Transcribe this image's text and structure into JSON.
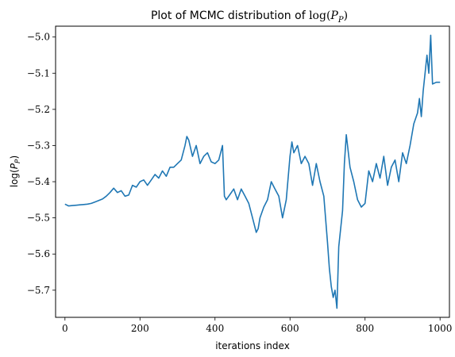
{
  "chart_data": {
    "type": "line",
    "title": {
      "prefix": "Plot of MCMC distribution of ",
      "math_func": "log(",
      "math_var": "P",
      "math_sub": "P",
      "math_close": ")"
    },
    "xlabel": "iterations index",
    "ylabel": {
      "math_func": "log(",
      "math_var": "P",
      "math_sub": "P",
      "math_close": ")"
    },
    "xlim": [
      -25,
      1025
    ],
    "ylim": [
      -5.775,
      -4.97
    ],
    "xticks": [
      0,
      200,
      400,
      600,
      800,
      1000
    ],
    "xtick_labels": [
      "0",
      "200",
      "400",
      "600",
      "800",
      "1000"
    ],
    "yticks": [
      -5.7,
      -5.6,
      -5.5,
      -5.4,
      -5.3,
      -5.2,
      -5.1,
      -5.0
    ],
    "ytick_labels": [
      "−5.7",
      "−5.6",
      "−5.5",
      "−5.4",
      "−5.3",
      "−5.2",
      "−5.1",
      "−5.0"
    ],
    "grid": false,
    "series": [
      {
        "color": "#1f77b4",
        "x": [
          0,
          10,
          20,
          30,
          40,
          50,
          60,
          70,
          80,
          90,
          100,
          110,
          120,
          130,
          140,
          150,
          160,
          170,
          180,
          190,
          200,
          210,
          220,
          230,
          240,
          250,
          260,
          270,
          280,
          290,
          300,
          310,
          320,
          325,
          330,
          340,
          350,
          360,
          370,
          380,
          390,
          400,
          410,
          420,
          425,
          430,
          440,
          450,
          460,
          470,
          480,
          490,
          500,
          510,
          515,
          520,
          530,
          540,
          550,
          560,
          570,
          580,
          590,
          600,
          605,
          610,
          620,
          630,
          640,
          650,
          660,
          670,
          680,
          690,
          700,
          705,
          710,
          715,
          720,
          725,
          730,
          740,
          745,
          750,
          760,
          770,
          780,
          790,
          800,
          810,
          820,
          830,
          840,
          850,
          860,
          870,
          880,
          890,
          900,
          910,
          920,
          930,
          940,
          945,
          950,
          955,
          960,
          965,
          970,
          975,
          980,
          990,
          1000
        ],
        "y": [
          -5.462,
          -5.467,
          -5.466,
          -5.465,
          -5.464,
          -5.463,
          -5.462,
          -5.46,
          -5.456,
          -5.452,
          -5.448,
          -5.44,
          -5.43,
          -5.418,
          -5.43,
          -5.425,
          -5.44,
          -5.437,
          -5.41,
          -5.415,
          -5.4,
          -5.395,
          -5.41,
          -5.395,
          -5.38,
          -5.39,
          -5.37,
          -5.385,
          -5.36,
          -5.36,
          -5.35,
          -5.34,
          -5.3,
          -5.275,
          -5.285,
          -5.33,
          -5.3,
          -5.35,
          -5.33,
          -5.32,
          -5.345,
          -5.35,
          -5.34,
          -5.3,
          -5.44,
          -5.45,
          -5.435,
          -5.42,
          -5.45,
          -5.42,
          -5.44,
          -5.46,
          -5.5,
          -5.54,
          -5.53,
          -5.5,
          -5.47,
          -5.45,
          -5.4,
          -5.42,
          -5.44,
          -5.5,
          -5.45,
          -5.33,
          -5.29,
          -5.32,
          -5.3,
          -5.35,
          -5.33,
          -5.35,
          -5.41,
          -5.35,
          -5.4,
          -5.44,
          -5.57,
          -5.64,
          -5.69,
          -5.72,
          -5.7,
          -5.75,
          -5.58,
          -5.48,
          -5.35,
          -5.27,
          -5.36,
          -5.4,
          -5.45,
          -5.47,
          -5.46,
          -5.37,
          -5.4,
          -5.35,
          -5.39,
          -5.33,
          -5.41,
          -5.36,
          -5.34,
          -5.4,
          -5.32,
          -5.35,
          -5.3,
          -5.24,
          -5.21,
          -5.17,
          -5.22,
          -5.15,
          -5.1,
          -5.05,
          -5.1,
          -4.995,
          -5.13,
          -5.125,
          -5.125
        ]
      }
    ]
  }
}
